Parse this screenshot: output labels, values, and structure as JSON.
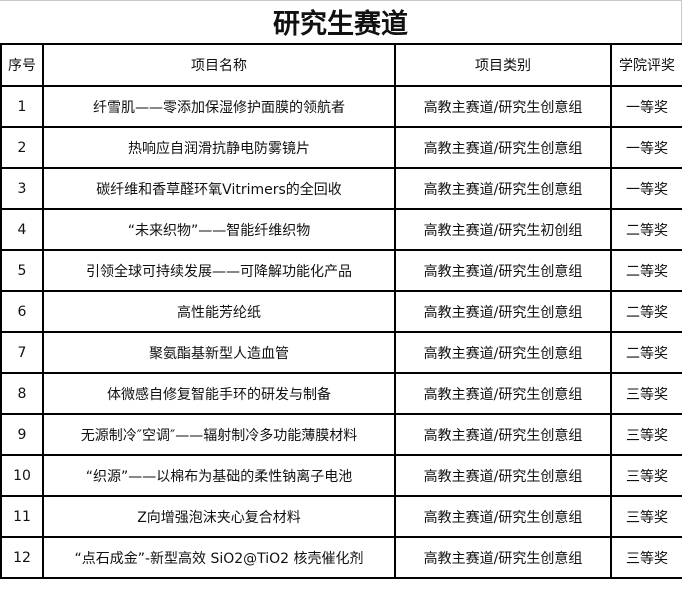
{
  "title": "研究生赛道",
  "columns": [
    "序号",
    "项目名称",
    "项目类别",
    "学院评奖"
  ],
  "rows": [
    [
      "1",
      "纤雪肌——零添加保湿修护面膜的领航者",
      "高教主赛道/研究生创意组",
      "一等奖"
    ],
    [
      "2",
      "热响应自润滑抗静电防雾镜片",
      "高教主赛道/研究生创意组",
      "一等奖"
    ],
    [
      "3",
      "碳纤维和香草醛环氧Vitrimers的全回收",
      "高教主赛道/研究生创意组",
      "一等奖"
    ],
    [
      "4",
      "“未来织物”——智能纤维织物",
      "高教主赛道/研究生初创组",
      "二等奖"
    ],
    [
      "5",
      "引领全球可持续发展——可降解功能化产品",
      "高教主赛道/研究生创意组",
      "二等奖"
    ],
    [
      "6",
      "高性能芳纶纸",
      "高教主赛道/研究生创意组",
      "二等奖"
    ],
    [
      "7",
      "聚氨酯基新型人造血管",
      "高教主赛道/研究生创意组",
      "二等奖"
    ],
    [
      "8",
      "体微感自修复智能手环的研发与制备",
      "高教主赛道/研究生创意组",
      "三等奖"
    ],
    [
      "9",
      "无源制冷″空调″——辐射制冷多功能薄膜材料",
      "高教主赛道/研究生创意组",
      "三等奖"
    ],
    [
      "10",
      "“织源”——以棉布为基础的柔性钠离子电池",
      "高教主赛道/研究生创意组",
      "三等奖"
    ],
    [
      "11",
      "Z向增强泡沫夹心复合材料",
      "高教主赛道/研究生创意组",
      "三等奖"
    ],
    [
      "12",
      "“点石成金”-新型高效 SiO2@TiO2 核壳催化剂",
      "高教主赛道/研究生创意组",
      "三等奖"
    ]
  ]
}
